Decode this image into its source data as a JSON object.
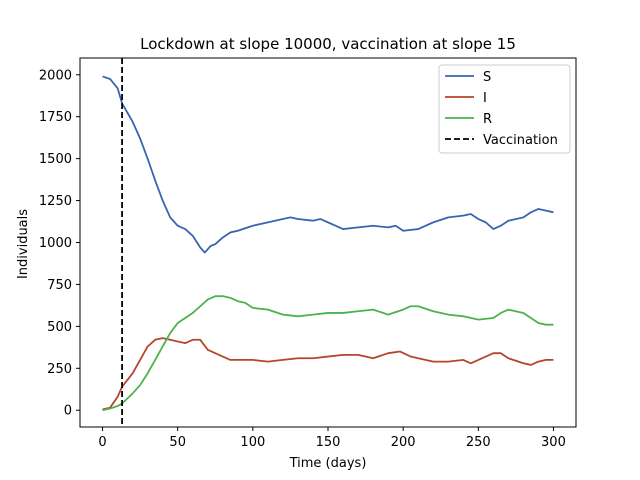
{
  "chart_data": {
    "type": "line",
    "title": "Lockdown at slope 10000, vaccination at slope 15",
    "xlabel": "Time (days)",
    "ylabel": "Individuals",
    "xlim": [
      -15,
      315
    ],
    "ylim": [
      -100,
      2100
    ],
    "xticks": [
      0,
      50,
      100,
      150,
      200,
      250,
      300
    ],
    "yticks": [
      0,
      250,
      500,
      750,
      1000,
      1250,
      1500,
      1750,
      2000
    ],
    "grid": false,
    "legend_position": "top-right",
    "vertical_line": {
      "x": 13,
      "label": "Vaccination",
      "color": "#000000",
      "style": "dashed"
    },
    "series": [
      {
        "name": "S",
        "color": "#3a64b0",
        "points": [
          [
            0,
            1990
          ],
          [
            5,
            1975
          ],
          [
            10,
            1920
          ],
          [
            13,
            1830
          ],
          [
            20,
            1720
          ],
          [
            25,
            1620
          ],
          [
            30,
            1500
          ],
          [
            35,
            1370
          ],
          [
            40,
            1250
          ],
          [
            45,
            1150
          ],
          [
            50,
            1100
          ],
          [
            55,
            1080
          ],
          [
            60,
            1040
          ],
          [
            65,
            970
          ],
          [
            68,
            940
          ],
          [
            72,
            980
          ],
          [
            75,
            990
          ],
          [
            80,
            1030
          ],
          [
            85,
            1060
          ],
          [
            90,
            1070
          ],
          [
            100,
            1100
          ],
          [
            110,
            1120
          ],
          [
            120,
            1140
          ],
          [
            125,
            1150
          ],
          [
            130,
            1140
          ],
          [
            140,
            1130
          ],
          [
            145,
            1140
          ],
          [
            150,
            1120
          ],
          [
            155,
            1100
          ],
          [
            160,
            1080
          ],
          [
            170,
            1090
          ],
          [
            180,
            1100
          ],
          [
            190,
            1090
          ],
          [
            195,
            1100
          ],
          [
            200,
            1070
          ],
          [
            210,
            1080
          ],
          [
            220,
            1120
          ],
          [
            230,
            1150
          ],
          [
            240,
            1160
          ],
          [
            245,
            1170
          ],
          [
            250,
            1140
          ],
          [
            255,
            1120
          ],
          [
            260,
            1080
          ],
          [
            265,
            1100
          ],
          [
            270,
            1130
          ],
          [
            280,
            1150
          ],
          [
            285,
            1180
          ],
          [
            290,
            1200
          ],
          [
            295,
            1190
          ],
          [
            300,
            1180
          ]
        ]
      },
      {
        "name": "I",
        "color": "#b5452e",
        "points": [
          [
            0,
            5
          ],
          [
            5,
            15
          ],
          [
            10,
            80
          ],
          [
            13,
            140
          ],
          [
            20,
            220
          ],
          [
            25,
            300
          ],
          [
            30,
            380
          ],
          [
            35,
            420
          ],
          [
            40,
            430
          ],
          [
            45,
            420
          ],
          [
            50,
            410
          ],
          [
            55,
            400
          ],
          [
            60,
            420
          ],
          [
            65,
            420
          ],
          [
            70,
            360
          ],
          [
            75,
            340
          ],
          [
            80,
            320
          ],
          [
            85,
            300
          ],
          [
            90,
            300
          ],
          [
            100,
            300
          ],
          [
            110,
            290
          ],
          [
            120,
            300
          ],
          [
            130,
            310
          ],
          [
            140,
            310
          ],
          [
            150,
            320
          ],
          [
            160,
            330
          ],
          [
            170,
            330
          ],
          [
            180,
            310
          ],
          [
            190,
            340
          ],
          [
            198,
            350
          ],
          [
            205,
            320
          ],
          [
            210,
            310
          ],
          [
            220,
            290
          ],
          [
            230,
            290
          ],
          [
            240,
            300
          ],
          [
            245,
            280
          ],
          [
            250,
            300
          ],
          [
            255,
            320
          ],
          [
            260,
            340
          ],
          [
            265,
            340
          ],
          [
            270,
            310
          ],
          [
            280,
            280
          ],
          [
            285,
            270
          ],
          [
            290,
            290
          ],
          [
            295,
            300
          ],
          [
            300,
            300
          ]
        ]
      },
      {
        "name": "R",
        "color": "#4cb34c",
        "points": [
          [
            0,
            0
          ],
          [
            5,
            10
          ],
          [
            10,
            25
          ],
          [
            13,
            40
          ],
          [
            20,
            100
          ],
          [
            25,
            150
          ],
          [
            30,
            220
          ],
          [
            35,
            300
          ],
          [
            40,
            380
          ],
          [
            45,
            460
          ],
          [
            50,
            520
          ],
          [
            55,
            550
          ],
          [
            60,
            580
          ],
          [
            65,
            620
          ],
          [
            70,
            660
          ],
          [
            75,
            680
          ],
          [
            80,
            680
          ],
          [
            85,
            670
          ],
          [
            90,
            650
          ],
          [
            95,
            640
          ],
          [
            100,
            610
          ],
          [
            110,
            600
          ],
          [
            120,
            570
          ],
          [
            130,
            560
          ],
          [
            140,
            570
          ],
          [
            150,
            580
          ],
          [
            160,
            580
          ],
          [
            170,
            590
          ],
          [
            180,
            600
          ],
          [
            190,
            570
          ],
          [
            200,
            600
          ],
          [
            205,
            620
          ],
          [
            210,
            620
          ],
          [
            220,
            590
          ],
          [
            230,
            570
          ],
          [
            240,
            560
          ],
          [
            250,
            540
          ],
          [
            260,
            550
          ],
          [
            265,
            580
          ],
          [
            270,
            600
          ],
          [
            280,
            580
          ],
          [
            290,
            520
          ],
          [
            295,
            510
          ],
          [
            300,
            510
          ]
        ]
      }
    ]
  }
}
